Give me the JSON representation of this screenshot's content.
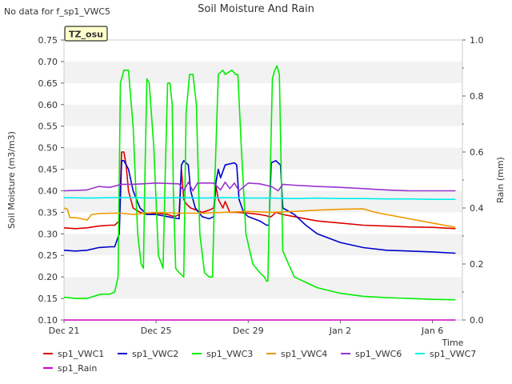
{
  "no_data_note": "No data for f_sp1_VWC5",
  "badge": "TZ_osu",
  "chart_data": {
    "type": "line",
    "title": "Soil Moisture And Rain",
    "xlabel": "Time",
    "ylabel": "Soil Moisture (m3/m3)",
    "y2label": "Rain (mm)",
    "ylim": [
      0.1,
      0.75
    ],
    "y2lim": [
      0.0,
      1.0
    ],
    "xlim": [
      0,
      17.3
    ],
    "x_ticks": [
      {
        "x": 0,
        "label": "Dec 21"
      },
      {
        "x": 4,
        "label": "Dec 25"
      },
      {
        "x": 8,
        "label": "Dec 29"
      },
      {
        "x": 12,
        "label": "Jan 2"
      },
      {
        "x": 16,
        "label": "Jan 6"
      }
    ],
    "y_ticks": [
      "0.10",
      "0.15",
      "0.20",
      "0.25",
      "0.30",
      "0.35",
      "0.40",
      "0.45",
      "0.50",
      "0.55",
      "0.60",
      "0.65",
      "0.70",
      "0.75"
    ],
    "y2_ticks": [
      "0.0",
      "0.2",
      "0.4",
      "0.6",
      "0.8",
      "1.0"
    ],
    "grid": "horizontal bands",
    "legend_position": "bottom",
    "series": [
      {
        "name": "sp1_VWC1",
        "color": "#dd0000",
        "axis": "left",
        "x": [
          0,
          0.5,
          1.0,
          1.5,
          2.0,
          2.2,
          2.3,
          2.4,
          2.5,
          2.6,
          2.7,
          2.8,
          3.0,
          3.3,
          3.6,
          4.0,
          4.5,
          4.8,
          5.0,
          5.1,
          5.2,
          5.3,
          5.5,
          6.0,
          6.3,
          6.5,
          6.6,
          6.7,
          6.9,
          7.0,
          7.2,
          7.5,
          8.0,
          8.5,
          8.8,
          8.9,
          9.0,
          9.2,
          9.5,
          10.0,
          11.0,
          12.0,
          13.0,
          14.0,
          15.0,
          16.0,
          17.0
        ],
        "y": [
          0.314,
          0.312,
          0.314,
          0.318,
          0.32,
          0.32,
          0.325,
          0.33,
          0.49,
          0.49,
          0.46,
          0.4,
          0.36,
          0.35,
          0.345,
          0.348,
          0.345,
          0.34,
          0.345,
          0.45,
          0.38,
          0.37,
          0.36,
          0.35,
          0.355,
          0.36,
          0.41,
          0.38,
          0.36,
          0.375,
          0.35,
          0.35,
          0.348,
          0.345,
          0.342,
          0.34,
          0.34,
          0.35,
          0.345,
          0.34,
          0.33,
          0.325,
          0.32,
          0.318,
          0.316,
          0.315,
          0.312
        ]
      },
      {
        "name": "sp1_VWC2",
        "color": "#0000cc",
        "axis": "left",
        "x": [
          0,
          0.5,
          1.0,
          1.5,
          2.0,
          2.2,
          2.4,
          2.5,
          2.6,
          2.8,
          3.0,
          3.3,
          3.6,
          4.0,
          4.5,
          5.0,
          5.1,
          5.2,
          5.4,
          5.5,
          5.7,
          6.0,
          6.3,
          6.5,
          6.6,
          6.7,
          6.8,
          7.0,
          7.4,
          7.5,
          7.6,
          7.8,
          8.0,
          8.5,
          8.8,
          8.9,
          9.0,
          9.2,
          9.4,
          9.5,
          10.0,
          10.5,
          11.0,
          12.0,
          13.0,
          14.0,
          15.0,
          16.0,
          17.0
        ],
        "y": [
          0.262,
          0.26,
          0.262,
          0.268,
          0.27,
          0.27,
          0.3,
          0.47,
          0.47,
          0.45,
          0.4,
          0.36,
          0.345,
          0.345,
          0.34,
          0.335,
          0.46,
          0.47,
          0.46,
          0.4,
          0.36,
          0.34,
          0.335,
          0.34,
          0.42,
          0.45,
          0.43,
          0.46,
          0.465,
          0.46,
          0.38,
          0.35,
          0.34,
          0.33,
          0.32,
          0.32,
          0.465,
          0.47,
          0.46,
          0.36,
          0.345,
          0.32,
          0.3,
          0.28,
          0.268,
          0.262,
          0.26,
          0.258,
          0.255
        ]
      },
      {
        "name": "sp1_VWC3",
        "color": "#00ee00",
        "axis": "left",
        "x": [
          0,
          0.5,
          1.0,
          1.3,
          1.6,
          2.0,
          2.2,
          2.35,
          2.45,
          2.6,
          2.8,
          3.0,
          3.2,
          3.35,
          3.45,
          3.5,
          3.6,
          3.7,
          3.9,
          4.1,
          4.3,
          4.4,
          4.5,
          4.6,
          4.7,
          4.75,
          4.85,
          5.0,
          5.2,
          5.3,
          5.45,
          5.6,
          5.75,
          5.9,
          6.1,
          6.3,
          6.45,
          6.55,
          6.7,
          6.9,
          7.0,
          7.3,
          7.45,
          7.55,
          7.7,
          7.9,
          8.2,
          8.5,
          8.7,
          8.8,
          8.85,
          9.05,
          9.15,
          9.25,
          9.35,
          9.5,
          10.0,
          11.0,
          12.0,
          13.0,
          14.0,
          15.0,
          16.0,
          17.0
        ],
        "y": [
          0.153,
          0.15,
          0.15,
          0.155,
          0.16,
          0.16,
          0.165,
          0.2,
          0.65,
          0.68,
          0.68,
          0.55,
          0.3,
          0.23,
          0.22,
          0.4,
          0.66,
          0.65,
          0.5,
          0.25,
          0.22,
          0.45,
          0.65,
          0.65,
          0.6,
          0.4,
          0.22,
          0.21,
          0.2,
          0.58,
          0.67,
          0.67,
          0.6,
          0.3,
          0.21,
          0.2,
          0.2,
          0.42,
          0.67,
          0.68,
          0.67,
          0.68,
          0.67,
          0.67,
          0.5,
          0.3,
          0.23,
          0.21,
          0.2,
          0.19,
          0.19,
          0.66,
          0.68,
          0.69,
          0.67,
          0.26,
          0.2,
          0.175,
          0.162,
          0.155,
          0.152,
          0.15,
          0.148,
          0.147
        ]
      },
      {
        "name": "sp1_VWC4",
        "color": "#ee9900",
        "axis": "left",
        "x": [
          0,
          0.15,
          0.25,
          0.6,
          1.0,
          1.2,
          1.5,
          2.0,
          2.5,
          3.0,
          3.5,
          4.0,
          5.0,
          6.0,
          7.0,
          8.0,
          9.0,
          10.0,
          11.0,
          12.0,
          13.0,
          13.5,
          14.0,
          15.0,
          16.0,
          17.0
        ],
        "y": [
          0.36,
          0.357,
          0.338,
          0.337,
          0.332,
          0.345,
          0.347,
          0.348,
          0.348,
          0.345,
          0.348,
          0.35,
          0.348,
          0.348,
          0.35,
          0.352,
          0.35,
          0.352,
          0.355,
          0.357,
          0.358,
          0.35,
          0.345,
          0.335,
          0.325,
          0.315
        ]
      },
      {
        "name": "sp1_VWC6",
        "color": "#9933cc",
        "axis": "left",
        "x": [
          0,
          1.0,
          1.5,
          2.0,
          2.5,
          3.0,
          4.0,
          5.0,
          5.2,
          5.4,
          5.6,
          5.8,
          6.0,
          6.5,
          6.8,
          7.0,
          7.2,
          7.4,
          7.6,
          8.0,
          8.5,
          9.0,
          9.3,
          9.5,
          10.0,
          11.0,
          12.0,
          13.0,
          14.0,
          15.0,
          16.0,
          17.0
        ],
        "y": [
          0.4,
          0.402,
          0.41,
          0.408,
          0.415,
          0.415,
          0.418,
          0.416,
          0.4,
          0.42,
          0.4,
          0.418,
          0.418,
          0.418,
          0.402,
          0.42,
          0.405,
          0.418,
          0.4,
          0.418,
          0.416,
          0.41,
          0.4,
          0.415,
          0.413,
          0.41,
          0.408,
          0.405,
          0.402,
          0.4,
          0.4,
          0.4
        ]
      },
      {
        "name": "sp1_VWC7",
        "color": "#00eeee",
        "axis": "left",
        "x": [
          0,
          1.0,
          2.0,
          3.0,
          4.0,
          5.0,
          6.0,
          7.0,
          8.0,
          9.0,
          10.0,
          11.0,
          12.0,
          13.0,
          14.0,
          15.0,
          16.0,
          17.0
        ],
        "y": [
          0.384,
          0.383,
          0.384,
          0.384,
          0.383,
          0.384,
          0.383,
          0.384,
          0.383,
          0.383,
          0.382,
          0.383,
          0.382,
          0.382,
          0.381,
          0.381,
          0.38,
          0.38
        ]
      },
      {
        "name": "sp1_Rain",
        "color": "#cc00cc",
        "axis": "right",
        "x": [
          0,
          17.0
        ],
        "y": [
          0.0,
          0.0
        ]
      }
    ]
  }
}
